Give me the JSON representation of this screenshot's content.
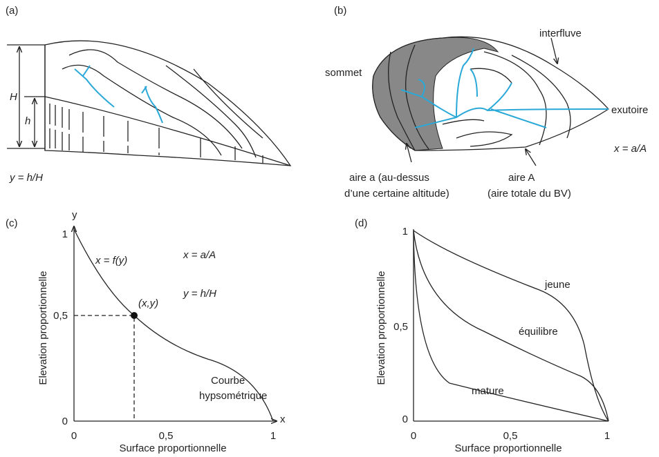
{
  "panels": [
    {
      "label": "(a)",
      "texts": [
        "H",
        "h",
        "y = h/H"
      ]
    },
    {
      "label": "(b)",
      "texts": [
        "interfluve",
        "sommet",
        "exutoire",
        "x = a/A",
        "aire a (au-dessus",
        "d’une certaine altitude)",
        "aire A",
        "(aire totale du BV)"
      ]
    },
    {
      "label": "(c)",
      "axis_labels": [
        "y",
        "x",
        "Elevation proportionnelle",
        "Surface proportionnelle"
      ],
      "ticks": [
        "1",
        "0,5",
        "0",
        "0",
        "0,5",
        "1"
      ],
      "texts": [
        "x = f(y)",
        "x = a/A",
        "y = h/H",
        "(x,y)",
        "Courbe",
        "hypsométrique"
      ]
    },
    {
      "label": "(d)",
      "axis_labels": [
        "Elevation proportionnelle",
        "Surface proportionnelle"
      ],
      "ticks": [
        "1",
        "0,5",
        "0",
        "0",
        "0,5",
        "1"
      ],
      "texts": [
        "jeune",
        "équilibre",
        "mature"
      ]
    }
  ]
}
